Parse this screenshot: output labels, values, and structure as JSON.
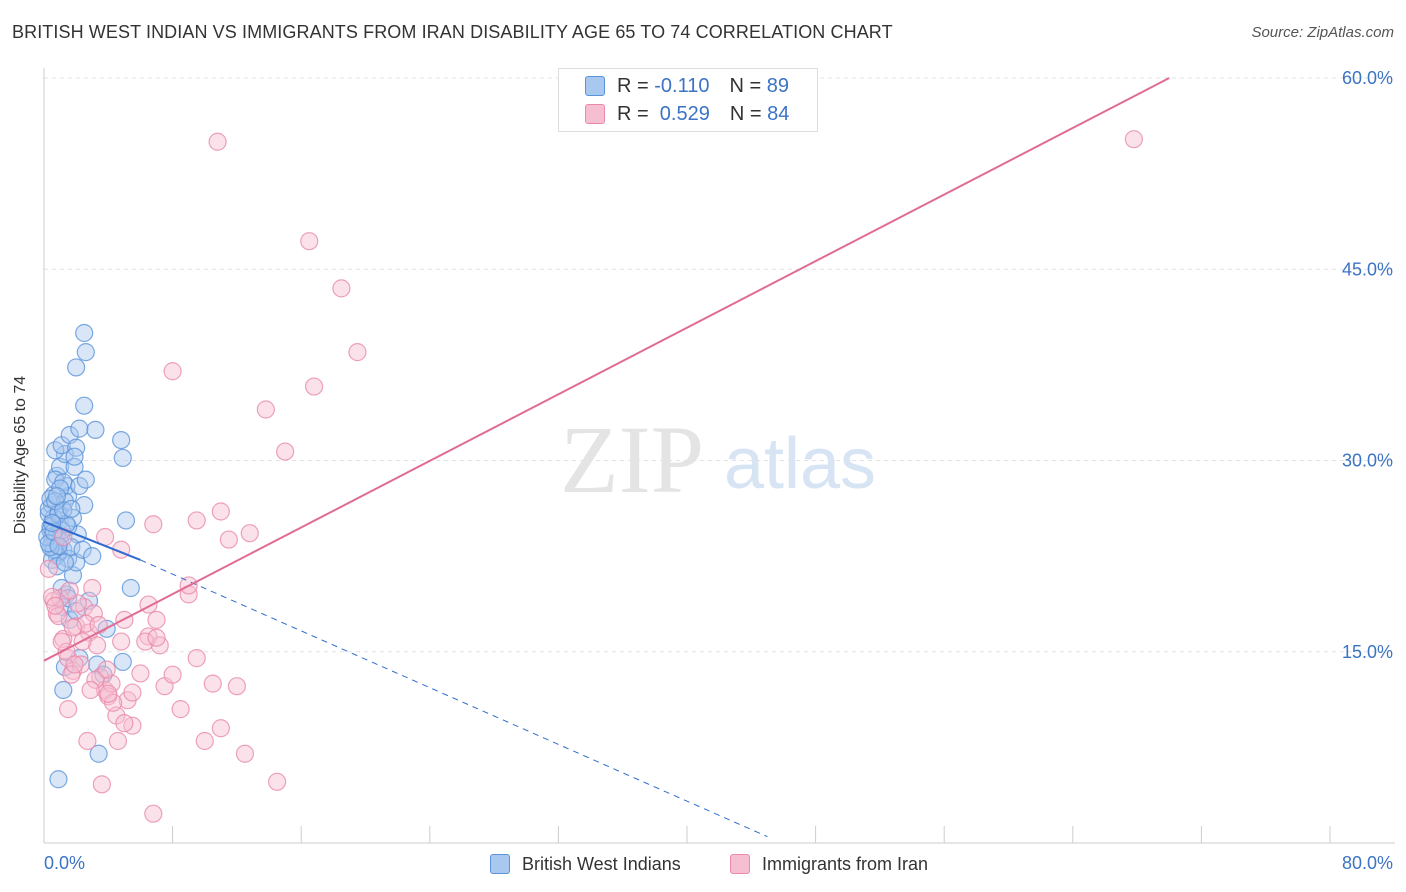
{
  "header": {
    "title": "BRITISH WEST INDIAN VS IMMIGRANTS FROM IRAN DISABILITY AGE 65 TO 74 CORRELATION CHART",
    "source": "Source: ZipAtlas.com"
  },
  "watermark": {
    "zip": "ZIP",
    "atlas": "atlas"
  },
  "legend": {
    "series1": {
      "r_label": "R =",
      "r_value": "-0.110",
      "n_label": "N =",
      "n_value": "89"
    },
    "series2": {
      "r_label": "R =",
      "r_value": " 0.529",
      "n_label": "N =",
      "n_value": "84"
    }
  },
  "colors": {
    "blue_fill": "#a9c8f0",
    "blue_stroke": "#5b93d9",
    "blue_line": "#2f6ccf",
    "pink_fill": "#f6bfd1",
    "pink_stroke": "#e98aab",
    "pink_line": "#e06c95",
    "grid": "#e3e3e3",
    "tick_label": "#3b73c5"
  },
  "chart_data": {
    "type": "scatter",
    "title": "BRITISH WEST INDIAN VS IMMIGRANTS FROM IRAN DISABILITY AGE 65 TO 74 CORRELATION CHART",
    "xlabel": "",
    "ylabel": "Disability Age 65 to 74",
    "xlim": [
      0,
      80
    ],
    "ylim": [
      0,
      60
    ],
    "x_tick_labels": [
      "0.0%",
      "80.0%"
    ],
    "y_ticks": [
      15,
      30,
      45,
      60
    ],
    "y_tick_labels": [
      "15.0%",
      "30.0%",
      "45.0%",
      "60.0%"
    ],
    "grid": true,
    "legend_position": "top-center",
    "series": [
      {
        "name": "British West Indians",
        "r": -0.11,
        "n": 89,
        "trend": {
          "x0": 0,
          "y0": 25.2,
          "x1": 6.0,
          "y1": 22.2,
          "dashed_to_x": 45,
          "dashed_to_y": 0.5
        },
        "points": [
          [
            0.3,
            25.8
          ],
          [
            0.4,
            24.5
          ],
          [
            0.5,
            26.5
          ],
          [
            0.6,
            25.0
          ],
          [
            0.7,
            23.8
          ],
          [
            0.8,
            22.5
          ],
          [
            0.5,
            24.0
          ],
          [
            0.9,
            26.0
          ],
          [
            1.0,
            25.3
          ],
          [
            1.2,
            23.0
          ],
          [
            0.6,
            27.3
          ],
          [
            0.8,
            28.8
          ],
          [
            1.0,
            29.5
          ],
          [
            1.4,
            28.0
          ],
          [
            1.5,
            27.2
          ],
          [
            1.3,
            30.5
          ],
          [
            0.7,
            30.8
          ],
          [
            1.1,
            31.2
          ],
          [
            1.6,
            32.0
          ],
          [
            2.0,
            31.0
          ],
          [
            2.2,
            32.5
          ],
          [
            1.9,
            29.5
          ],
          [
            2.5,
            26.5
          ],
          [
            2.1,
            24.2
          ],
          [
            1.5,
            22.3
          ],
          [
            1.8,
            21.0
          ],
          [
            1.4,
            19.5
          ],
          [
            1.1,
            20.0
          ],
          [
            1.2,
            18.5
          ],
          [
            1.6,
            17.5
          ],
          [
            2.2,
            14.5
          ],
          [
            1.3,
            13.8
          ],
          [
            1.2,
            12.0
          ],
          [
            0.9,
            5.0
          ],
          [
            3.4,
            7.0
          ],
          [
            3.3,
            14.0
          ],
          [
            3.7,
            13.2
          ],
          [
            3.9,
            16.8
          ],
          [
            4.9,
            14.2
          ],
          [
            5.4,
            20.0
          ],
          [
            5.1,
            25.3
          ],
          [
            4.9,
            30.2
          ],
          [
            4.8,
            31.6
          ],
          [
            3.2,
            32.4
          ],
          [
            2.5,
            34.3
          ],
          [
            2.0,
            37.3
          ],
          [
            2.6,
            38.5
          ],
          [
            2.5,
            40.0
          ],
          [
            0.4,
            24.8
          ],
          [
            0.5,
            23.5
          ],
          [
            0.6,
            25.5
          ],
          [
            0.8,
            24.2
          ],
          [
            1.0,
            23.7
          ],
          [
            0.3,
            26.2
          ],
          [
            0.4,
            27.0
          ],
          [
            0.7,
            28.5
          ],
          [
            1.2,
            28.3
          ],
          [
            1.3,
            26.8
          ],
          [
            0.9,
            22.8
          ],
          [
            1.7,
            23.2
          ],
          [
            2.0,
            22.0
          ],
          [
            2.4,
            23.0
          ],
          [
            3.0,
            22.5
          ],
          [
            1.5,
            24.8
          ],
          [
            0.6,
            23.0
          ],
          [
            0.9,
            25.8
          ],
          [
            0.5,
            22.2
          ],
          [
            1.8,
            25.5
          ],
          [
            2.2,
            28.0
          ],
          [
            1.0,
            27.8
          ],
          [
            0.4,
            23.2
          ],
          [
            0.7,
            26.8
          ],
          [
            1.1,
            24.5
          ],
          [
            1.4,
            25.0
          ],
          [
            2.6,
            28.5
          ],
          [
            0.2,
            24.0
          ],
          [
            0.3,
            23.5
          ],
          [
            0.8,
            21.7
          ],
          [
            1.5,
            19.2
          ],
          [
            2.0,
            18.2
          ],
          [
            1.3,
            22.0
          ],
          [
            0.6,
            24.4
          ],
          [
            0.9,
            23.3
          ],
          [
            1.2,
            26.1
          ],
          [
            0.5,
            25.1
          ],
          [
            2.8,
            19.0
          ],
          [
            1.7,
            26.2
          ],
          [
            0.8,
            27.2
          ],
          [
            1.9,
            30.3
          ]
        ]
      },
      {
        "name": "Immigrants from Iran",
        "r": 0.529,
        "n": 84,
        "trend": {
          "x0": 0,
          "y0": 14.3,
          "x1": 70,
          "y1": 60.0
        },
        "points": [
          [
            0.3,
            21.5
          ],
          [
            0.6,
            19.0
          ],
          [
            0.8,
            18.0
          ],
          [
            1.0,
            19.2
          ],
          [
            1.2,
            16.0
          ],
          [
            1.5,
            14.5
          ],
          [
            1.8,
            13.5
          ],
          [
            2.0,
            17.0
          ],
          [
            2.5,
            18.5
          ],
          [
            2.8,
            16.5
          ],
          [
            3.0,
            20.0
          ],
          [
            3.3,
            15.5
          ],
          [
            3.5,
            13.0
          ],
          [
            3.8,
            12.0
          ],
          [
            4.0,
            11.5
          ],
          [
            4.2,
            12.5
          ],
          [
            4.5,
            10.0
          ],
          [
            4.8,
            15.8
          ],
          [
            5.0,
            17.5
          ],
          [
            5.2,
            11.2
          ],
          [
            5.5,
            9.2
          ],
          [
            6.0,
            13.3
          ],
          [
            6.5,
            16.2
          ],
          [
            7.0,
            17.5
          ],
          [
            7.5,
            12.3
          ],
          [
            8.0,
            13.2
          ],
          [
            8.5,
            10.5
          ],
          [
            9.0,
            19.5
          ],
          [
            9.5,
            14.5
          ],
          [
            10.0,
            8.0
          ],
          [
            10.5,
            12.5
          ],
          [
            11.0,
            9.0
          ],
          [
            12.0,
            12.3
          ],
          [
            12.5,
            7.0
          ],
          [
            14.5,
            4.8
          ],
          [
            1.5,
            10.5
          ],
          [
            2.3,
            14.0
          ],
          [
            2.7,
            8.0
          ],
          [
            3.6,
            4.6
          ],
          [
            4.6,
            8.0
          ],
          [
            6.8,
            2.3
          ],
          [
            1.2,
            24.0
          ],
          [
            1.4,
            15.0
          ],
          [
            1.7,
            13.2
          ],
          [
            2.1,
            18.8
          ],
          [
            2.4,
            15.8
          ],
          [
            3.2,
            12.8
          ],
          [
            0.9,
            17.8
          ],
          [
            0.5,
            19.3
          ],
          [
            1.9,
            14.0
          ],
          [
            3.8,
            24.0
          ],
          [
            4.8,
            23.0
          ],
          [
            6.8,
            25.0
          ],
          [
            6.5,
            18.7
          ],
          [
            9.5,
            25.3
          ],
          [
            11.0,
            26.0
          ],
          [
            11.5,
            23.8
          ],
          [
            12.8,
            24.3
          ],
          [
            9.0,
            20.2
          ],
          [
            8.0,
            37.0
          ],
          [
            13.8,
            34.0
          ],
          [
            15.0,
            30.7
          ],
          [
            16.8,
            35.8
          ],
          [
            16.5,
            47.2
          ],
          [
            19.5,
            38.5
          ],
          [
            18.5,
            43.5
          ],
          [
            10.8,
            55.0
          ],
          [
            67.8,
            55.2
          ],
          [
            7.2,
            15.5
          ],
          [
            5.5,
            11.8
          ],
          [
            4.3,
            11.0
          ],
          [
            3.1,
            18.0
          ],
          [
            2.6,
            17.2
          ],
          [
            1.6,
            19.8
          ],
          [
            0.7,
            18.6
          ],
          [
            1.1,
            15.8
          ],
          [
            2.9,
            12.0
          ],
          [
            3.9,
            13.6
          ],
          [
            5.0,
            9.4
          ],
          [
            6.3,
            15.8
          ],
          [
            7.0,
            16.1
          ],
          [
            4.0,
            11.7
          ],
          [
            3.4,
            17.1
          ],
          [
            1.8,
            16.9
          ]
        ]
      }
    ]
  },
  "bottom_legend": [
    "British West Indians",
    "Immigrants from Iran"
  ]
}
